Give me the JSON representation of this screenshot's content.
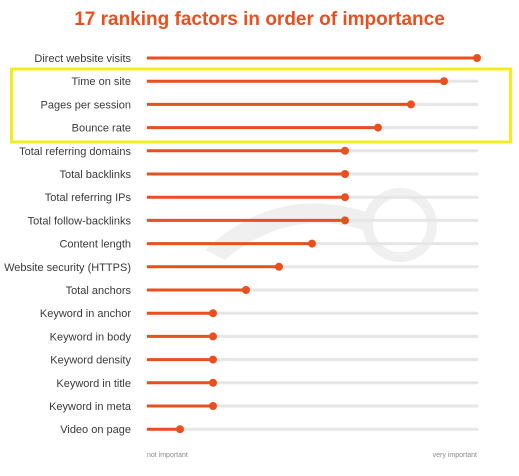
{
  "chart_data": {
    "type": "bar",
    "title": "17 ranking factors in order of importance",
    "categories": [
      "Direct website visits",
      "Time on site",
      "Pages per session",
      "Bounce rate",
      "Total referring domains",
      "Total backlinks",
      "Total referring IPs",
      "Total follow-backlinks",
      "Content length",
      "Website security (HTTPS)",
      "Total anchors",
      "Keyword in anchor",
      "Keyword in body",
      "Keyword density",
      "Keyword in title",
      "Keyword in meta",
      "Video on page"
    ],
    "values": [
      1.0,
      0.9,
      0.8,
      0.7,
      0.6,
      0.6,
      0.6,
      0.6,
      0.5,
      0.4,
      0.3,
      0.2,
      0.2,
      0.2,
      0.2,
      0.2,
      0.1
    ],
    "xlim": [
      0,
      1
    ],
    "scale_labels": {
      "min": "not important",
      "max": "very important"
    },
    "highlighted_categories": [
      "Time on site",
      "Pages per session",
      "Bounce rate"
    ],
    "colors": {
      "bar": "#e8501f",
      "track": "#e6e6e6",
      "highlight_box": "#f4ec1c",
      "title": "#e8501f"
    }
  }
}
